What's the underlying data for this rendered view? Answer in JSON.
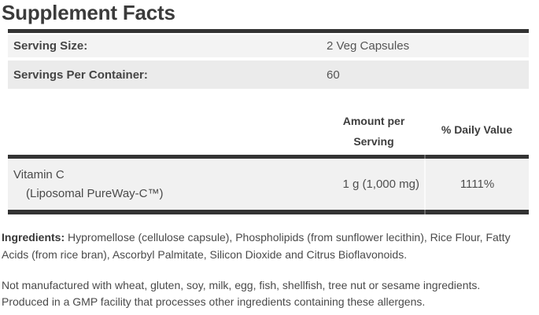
{
  "title": "Supplement Facts",
  "table": {
    "serving_rows": [
      {
        "label": "Serving Size:",
        "value": "2 Veg Capsules"
      },
      {
        "label": "Servings Per Container:",
        "value": "60"
      }
    ],
    "columns": {
      "amount_header": [
        "Amount per",
        "Serving"
      ],
      "daily_value_header": "% Daily Value"
    },
    "nutrient": {
      "name": "Vitamin C",
      "subname": "(Liposomal PureWay-C™)",
      "amount": "1 g (1,000 mg)",
      "daily_value": "1111%"
    }
  },
  "ingredients": {
    "label": "Ingredients:",
    "text": "Hypromellose (cellulose capsule), Phospholipids (from sunflower lecithin), Rice Flour, Fatty Acids (from rice bran), Ascorbyl Palmitate, Silicon Dioxide and Citrus Bioflavonoids."
  },
  "allergen_info": {
    "line1": "Not manufactured with wheat, gluten, soy, milk, egg, fish, shellfish, tree nut or sesame ingredients.",
    "line2": "Produced in a GMP facility that processes other ingredients containing these allergens."
  },
  "colors": {
    "bar": "#333333",
    "row_light": "#f3f3f3",
    "row_medium": "#ebebeb",
    "nutrient_row": "#f1f1f1",
    "text_dark": "#3b3b3b",
    "text_body": "#4a4a4a",
    "divider": "#fafafa"
  }
}
